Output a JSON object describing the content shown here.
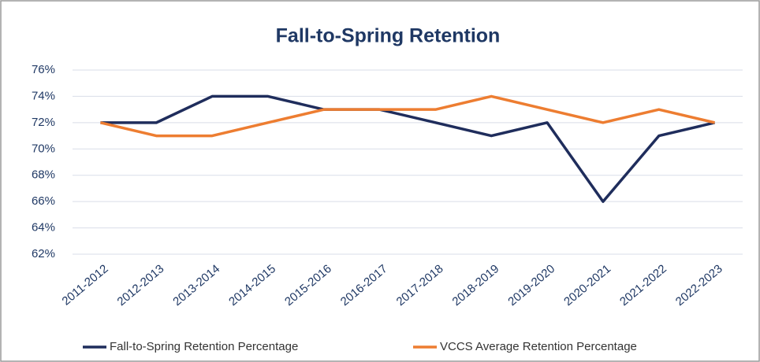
{
  "chart_data": {
    "type": "line",
    "title": "Fall-to-Spring Retention",
    "categories": [
      "2011-2012",
      "2012-2013",
      "2013-2014",
      "2014-2015",
      "2015-2016",
      "2016-2017",
      "2017-2018",
      "2018-2019",
      "2019-2020",
      "2020-2021",
      "2021-2022",
      "2022-2023"
    ],
    "series": [
      {
        "name": "Fall-to-Spring Retention Percentage",
        "color": "#1f2d5c",
        "values": [
          72,
          72,
          74,
          74,
          73,
          73,
          72,
          71,
          72,
          66,
          71,
          72
        ]
      },
      {
        "name": "VCCS Average Retention Percentage",
        "color": "#ed7d31",
        "values": [
          72,
          71,
          71,
          72,
          73,
          73,
          73,
          74,
          73,
          72,
          73,
          72
        ]
      }
    ],
    "ylim": [
      62,
      76
    ],
    "yticks": [
      {
        "value": 62,
        "label": "62%"
      },
      {
        "value": 64,
        "label": "64%"
      },
      {
        "value": 66,
        "label": "66%"
      },
      {
        "value": 68,
        "label": "68%"
      },
      {
        "value": 70,
        "label": "70%"
      },
      {
        "value": 72,
        "label": "72%"
      },
      {
        "value": 74,
        "label": "74%"
      },
      {
        "value": 76,
        "label": "76%"
      }
    ],
    "grid": true,
    "legend": "bottom"
  }
}
